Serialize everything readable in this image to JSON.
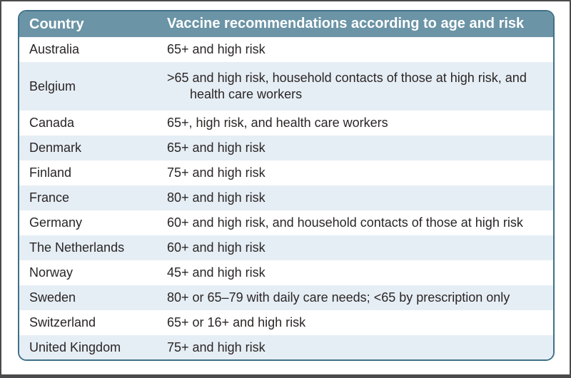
{
  "table": {
    "title_semantic": "Vaccine recommendations by country",
    "header": {
      "country": "Country",
      "recommendation": "Vaccine recommendations according to age and risk"
    },
    "rows": [
      {
        "country": "Australia",
        "recommendation": "65+ and high risk"
      },
      {
        "country": "Belgium",
        "recommendation": ">65 and high risk, household contacts of those at high risk, and health care workers"
      },
      {
        "country": "Canada",
        "recommendation": "65+, high risk, and health care workers"
      },
      {
        "country": "Denmark",
        "recommendation": "65+ and high risk"
      },
      {
        "country": "Finland",
        "recommendation": "75+ and high risk"
      },
      {
        "country": "France",
        "recommendation": "80+ and high risk"
      },
      {
        "country": "Germany",
        "recommendation": "60+ and high risk, and household contacts of those at high risk"
      },
      {
        "country": "The Netherlands",
        "recommendation": "60+ and high risk"
      },
      {
        "country": "Norway",
        "recommendation": "45+ and high risk"
      },
      {
        "country": "Sweden",
        "recommendation": "80+ or 65–79 with daily care needs; <65 by prescription only"
      },
      {
        "country": "Switzerland",
        "recommendation": "65+ or 16+ and high risk"
      },
      {
        "country": "United Kingdom",
        "recommendation": "75+ and high risk"
      }
    ],
    "colors": {
      "header_bg": "#6b94a6",
      "header_text": "#ffffff",
      "table_border": "#3e7187",
      "stripe_bg": "#e6eef5",
      "row_bg": "#ffffff",
      "body_text": "#2a2626",
      "outer_frame": "#4b4b4d"
    }
  }
}
